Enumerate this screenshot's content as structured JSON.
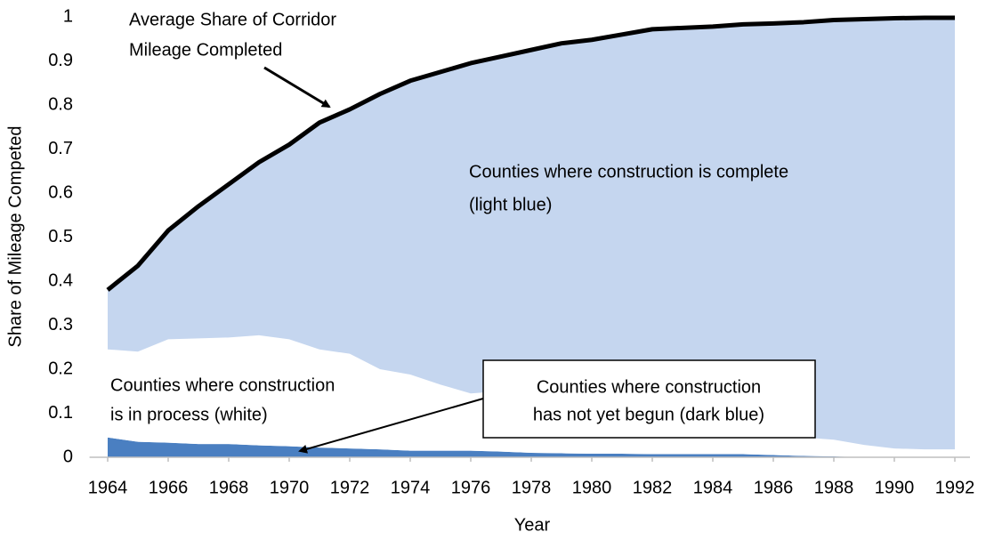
{
  "chart_data": {
    "type": "stacked-area",
    "x_label": "Year",
    "y_label": "Share of Mileage Competed",
    "x": [
      1964,
      1965,
      1966,
      1967,
      1968,
      1969,
      1970,
      1971,
      1972,
      1973,
      1974,
      1975,
      1976,
      1977,
      1978,
      1979,
      1980,
      1981,
      1982,
      1983,
      1984,
      1985,
      1986,
      1987,
      1988,
      1989,
      1990,
      1991,
      1992
    ],
    "series": [
      {
        "color": "#4a7fc1",
        "values": [
          0.045,
          0.035,
          0.033,
          0.03,
          0.03,
          0.027,
          0.025,
          0.022,
          0.02,
          0.018,
          0.015,
          0.015,
          0.015,
          0.013,
          0.01,
          0.009,
          0.008,
          0.008,
          0.007,
          0.007,
          0.007,
          0.007,
          0.005,
          0.003,
          0.002,
          0,
          0,
          0,
          0
        ]
      },
      {
        "color": "#ffffff",
        "values": [
          0.2,
          0.205,
          0.235,
          0.24,
          0.242,
          0.25,
          0.243,
          0.223,
          0.215,
          0.182,
          0.173,
          0.15,
          0.13,
          0.137,
          0.12,
          0.111,
          0.102,
          0.092,
          0.078,
          0.068,
          0.053,
          0.048,
          0.045,
          0.042,
          0.038,
          0.028,
          0.02,
          0.018,
          0.018
        ]
      },
      {
        "color": "#c5d6ef",
        "values": [
          0.135,
          0.195,
          0.247,
          0.3,
          0.348,
          0.393,
          0.442,
          0.515,
          0.555,
          0.625,
          0.667,
          0.71,
          0.75,
          0.76,
          0.795,
          0.82,
          0.838,
          0.86,
          0.887,
          0.9,
          0.918,
          0.928,
          0.935,
          0.943,
          0.953,
          0.967,
          0.977,
          0.98,
          0.98
        ]
      }
    ],
    "line": {
      "color": "#000000",
      "values": [
        0.38,
        0.435,
        0.515,
        0.57,
        0.62,
        0.67,
        0.71,
        0.76,
        0.79,
        0.825,
        0.855,
        0.875,
        0.895,
        0.91,
        0.925,
        0.94,
        0.948,
        0.96,
        0.972,
        0.975,
        0.978,
        0.983,
        0.985,
        0.988,
        0.993,
        0.995,
        0.997,
        0.998,
        0.998
      ]
    },
    "xlim": [
      1963.4,
      1992.5
    ],
    "xticks": [
      1964,
      1966,
      1968,
      1970,
      1972,
      1974,
      1976,
      1978,
      1980,
      1982,
      1984,
      1986,
      1988,
      1990,
      1992
    ],
    "ylim": [
      0,
      1
    ],
    "yticks": [
      0,
      0.1,
      0.2,
      0.3,
      0.4,
      0.5,
      0.6,
      0.7,
      0.8,
      0.9,
      1
    ],
    "annotations": {
      "average": [
        "Average Share of Corridor",
        "Mileage Completed"
      ],
      "complete": [
        "Counties where construction is complete",
        "(light blue)"
      ],
      "in_process": [
        "Counties where construction",
        "is in process (white)"
      ],
      "not_begun": [
        "Counties where construction",
        "has not yet begun (dark blue)"
      ]
    }
  }
}
